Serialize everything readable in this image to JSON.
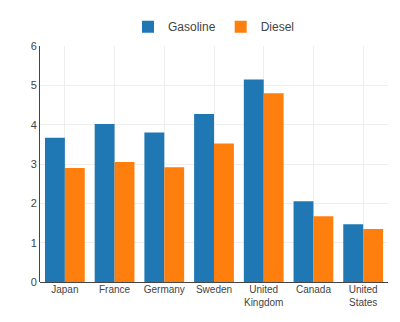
{
  "chart_data": {
    "type": "bar",
    "categories": [
      "Japan",
      "France",
      "Germany",
      "Sweden",
      "United\nKingdom",
      "Canada",
      "United\nStates"
    ],
    "series": [
      {
        "name": "Gasoline",
        "values": [
          3.67,
          4.02,
          3.8,
          4.27,
          5.15,
          2.05,
          1.47
        ]
      },
      {
        "name": "Diesel",
        "values": [
          2.9,
          3.05,
          2.92,
          3.52,
          4.8,
          1.67,
          1.35
        ]
      }
    ],
    "ylim": [
      0,
      6
    ],
    "yticks": [
      0,
      1,
      2,
      3,
      4,
      5,
      6
    ],
    "grid": true,
    "legend": "upper center"
  }
}
